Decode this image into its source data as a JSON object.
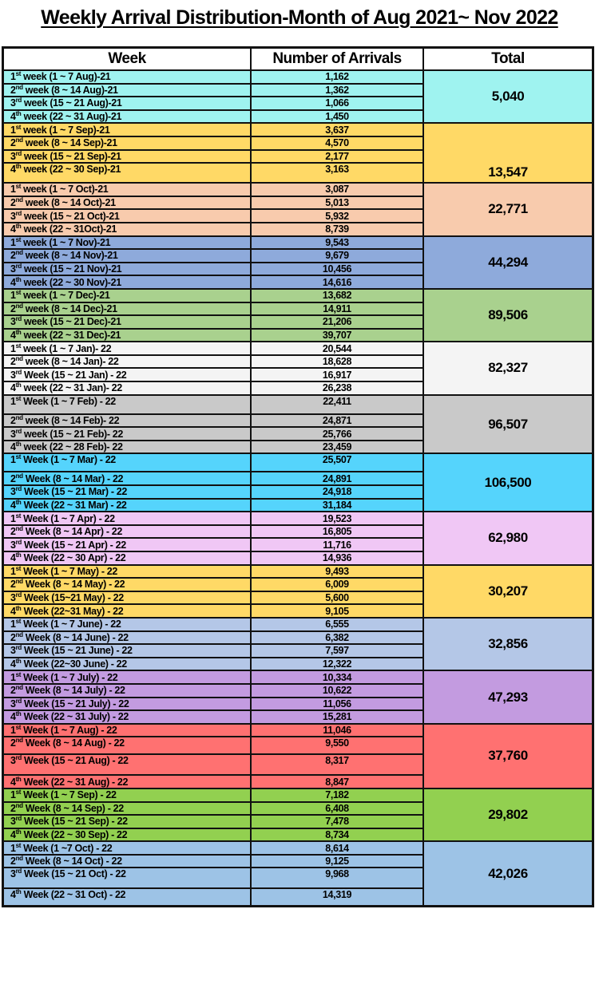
{
  "title": "Weekly Arrival Distribution-Month of Aug 2021~ Nov 2022",
  "headers": {
    "week": "Week",
    "arrivals": "Number of Arrivals",
    "total": "Total"
  },
  "months": [
    {
      "color": "#9ff3f0",
      "total": "5,040",
      "weeks": [
        {
          "n": "1",
          "sup": "st",
          "rest": " week (1 ~ 7 Aug)-21",
          "value": "1,162"
        },
        {
          "n": "2",
          "sup": "nd",
          "rest": " week (8 ~ 14 Aug)-21",
          "value": "1,362"
        },
        {
          "n": "3",
          "sup": "rd",
          "rest": " week (15 ~ 21 Aug)-21",
          "value": "1,066"
        },
        {
          "n": "4",
          "sup": "th",
          "rest": " week (22 ~ 31 Aug)-21",
          "value": "1,450"
        }
      ]
    },
    {
      "color": "#ffd966",
      "total": "13,547",
      "weeks": [
        {
          "n": "1",
          "sup": "st",
          "rest": " week (1 ~ 7 Sep)-21",
          "value": "3,637"
        },
        {
          "n": "2",
          "sup": "nd",
          "rest": " week (8 ~ 14 Sep)-21",
          "value": "4,570"
        },
        {
          "n": "3",
          "sup": "rd",
          "rest": " week (15 ~ 21 Sep)-21",
          "value": "2,177"
        },
        {
          "n": "4",
          "sup": "th",
          "rest": " week (22 ~ 30 Sep)-21",
          "value": "3,163"
        }
      ]
    },
    {
      "color": "#f8cbad",
      "total": "22,771",
      "weeks": [
        {
          "n": "1",
          "sup": "st",
          "rest": " week (1 ~ 7 Oct)-21",
          "value": "3,087"
        },
        {
          "n": "2",
          "sup": "nd",
          "rest": " week (8 ~ 14 Oct)-21",
          "value": "5,013"
        },
        {
          "n": "3",
          "sup": "rd",
          "rest": " week (15 ~ 21 Oct)-21",
          "value": "5,932"
        },
        {
          "n": "4",
          "sup": "th",
          "rest": " week (22 ~ 31Oct)-21",
          "value": "8,739"
        }
      ]
    },
    {
      "color": "#8eaadb",
      "total": "44,294",
      "weeks": [
        {
          "n": "1",
          "sup": "st",
          "rest": " week (1 ~ 7 Nov)-21",
          "value": "9,543"
        },
        {
          "n": "2",
          "sup": "nd",
          "rest": " week (8 ~ 14 Nov)-21",
          "value": "9,679"
        },
        {
          "n": "3",
          "sup": "rd",
          "rest": " week (15 ~ 21 Nov)-21",
          "value": "10,456"
        },
        {
          "n": "4",
          "sup": "th",
          "rest": " week (22 ~ 30 Nov)-21",
          "value": "14,616"
        }
      ]
    },
    {
      "color": "#a9d18e",
      "total": "89,506",
      "weeks": [
        {
          "n": "1",
          "sup": "st",
          "rest": " week (1 ~ 7 Dec)-21",
          "value": "13,682"
        },
        {
          "n": "2",
          "sup": "nd",
          "rest": " week (8 ~ 14 Dec)-21",
          "value": "14,911"
        },
        {
          "n": "3",
          "sup": "rd",
          "rest": " week (15 ~ 21 Dec)-21",
          "value": "21,206"
        },
        {
          "n": "4",
          "sup": "th",
          "rest": " week (22 ~ 31 Dec)-21",
          "value": "39,707"
        }
      ]
    },
    {
      "color": "#f4f4f4",
      "total": "82,327",
      "weeks": [
        {
          "n": "1",
          "sup": "st",
          "rest": " week (1 ~ 7 Jan)- 22",
          "value": "20,544"
        },
        {
          "n": "2",
          "sup": "nd",
          "rest": " week (8 ~ 14 Jan)- 22",
          "value": "18,628"
        },
        {
          "n": "3",
          "sup": "rd",
          "rest": " Week (15 ~ 21 Jan) - 22",
          "value": "16,917"
        },
        {
          "n": "4",
          "sup": "th",
          "rest": " week (22 ~ 31 Jan)- 22",
          "value": "26,238"
        }
      ]
    },
    {
      "color": "#c9c9c9",
      "total": "96,507",
      "weeks": [
        {
          "n": "1",
          "sup": "st",
          "rest": " Week (1 ~ 7 Feb) - 22",
          "value": "22,411"
        },
        {
          "n": "2",
          "sup": "nd",
          "rest": " week (8 ~ 14 Feb)- 22",
          "value": "24,871"
        },
        {
          "n": "3",
          "sup": "rd",
          "rest": " week (15 ~ 21 Feb)- 22",
          "value": "25,766"
        },
        {
          "n": "4",
          "sup": "th",
          "rest": " week (22 ~ 28 Feb)- 22",
          "value": "23,459"
        }
      ]
    },
    {
      "color": "#55d4fc",
      "total": "106,500",
      "weeks": [
        {
          "n": "1",
          "sup": "st",
          "rest": " Week (1 ~ 7 Mar) - 22",
          "value": "25,507"
        },
        {
          "n": "2",
          "sup": "nd",
          "rest": " Week (8 ~ 14 Mar) - 22",
          "value": "24,891"
        },
        {
          "n": "3",
          "sup": "rd",
          "rest": " Week (15 ~ 21 Mar) - 22",
          "value": "24,918"
        },
        {
          "n": "4",
          "sup": "th",
          "rest": " Week (22 ~ 31 Mar) - 22",
          "value": "31,184"
        }
      ]
    },
    {
      "color": "#f0c7f5",
      "total": "62,980",
      "weeks": [
        {
          "n": "1",
          "sup": "st",
          "rest": " Week (1 ~ 7 Apr) - 22",
          "value": "19,523"
        },
        {
          "n": "2",
          "sup": "nd",
          "rest": " Week (8 ~ 14 Apr) - 22",
          "value": "16,805"
        },
        {
          "n": "3",
          "sup": "rd",
          "rest": " Week (15 ~ 21 Apr) - 22",
          "value": "11,716"
        },
        {
          "n": "4",
          "sup": "th",
          "rest": " Week (22 ~ 30 Apr) - 22",
          "value": "14,936"
        }
      ]
    },
    {
      "color": "#ffd966",
      "total": "30,207",
      "weeks": [
        {
          "n": "1",
          "sup": "st",
          "rest": " Week (1 ~ 7 May) - 22",
          "value": "9,493"
        },
        {
          "n": "2",
          "sup": "nd",
          "rest": " Week (8 ~ 14 May) - 22",
          "value": "6,009"
        },
        {
          "n": "3",
          "sup": "rd",
          "rest": " Week (15~21 May) - 22",
          "value": "5,600"
        },
        {
          "n": "4",
          "sup": "th",
          "rest": " Week (22~31 May) - 22",
          "value": "9,105"
        }
      ]
    },
    {
      "color": "#b4c7e7",
      "total": "32,856",
      "weeks": [
        {
          "n": "1",
          "sup": "st",
          "rest": " Week (1 ~ 7 June) - 22",
          "value": "6,555"
        },
        {
          "n": "2",
          "sup": "nd",
          "rest": " Week (8 ~ 14 June) - 22",
          "value": "6,382"
        },
        {
          "n": "3",
          "sup": "rd",
          "rest": " Week (15 ~ 21 June) - 22",
          "value": "7,597"
        },
        {
          "n": "4",
          "sup": "th",
          "rest": " Week (22~30 June) - 22",
          "value": "12,322"
        }
      ]
    },
    {
      "color": "#c39be0",
      "total": "47,293",
      "weeks": [
        {
          "n": "1",
          "sup": "st",
          "rest": " Week (1 ~ 7 July) - 22",
          "value": "10,334"
        },
        {
          "n": "2",
          "sup": "nd",
          "rest": " Week (8 ~ 14 July) - 22",
          "value": "10,622"
        },
        {
          "n": "3",
          "sup": "rd",
          "rest": " Week (15 ~ 21 July) - 22",
          "value": "11,056"
        },
        {
          "n": "4",
          "sup": "th",
          "rest": " Week (22 ~ 31 July) - 22",
          "value": "15,281"
        }
      ]
    },
    {
      "color": "#ff7171",
      "total": "37,760",
      "weeks": [
        {
          "n": "1",
          "sup": "st",
          "rest": " Week (1 ~ 7 Aug) - 22",
          "value": "11,046"
        },
        {
          "n": "2",
          "sup": "nd",
          "rest": " Week (8 ~ 14 Aug) - 22",
          "value": "9,550"
        },
        {
          "n": "3",
          "sup": "rd",
          "rest": " Week (15 ~ 21 Aug) - 22",
          "value": "8,317"
        },
        {
          "n": "4",
          "sup": "th",
          "rest": " Week (22 ~ 31 Aug) - 22",
          "value": "8,847"
        }
      ]
    },
    {
      "color": "#92d050",
      "total": "29,802",
      "weeks": [
        {
          "n": "1",
          "sup": "st",
          "rest": " Week (1 ~ 7 Sep) - 22",
          "value": "7,182"
        },
        {
          "n": "2",
          "sup": "nd",
          "rest": " Week (8 ~ 14 Sep) - 22",
          "value": "6,408"
        },
        {
          "n": "3",
          "sup": "rd",
          "rest": " Week (15 ~ 21 Sep) - 22",
          "value": "7,478"
        },
        {
          "n": "4",
          "sup": "th",
          "rest": " Week (22 ~ 30 Sep) - 22",
          "value": "8,734"
        }
      ]
    },
    {
      "color": "#9dc3e6",
      "total": "42,026",
      "weeks": [
        {
          "n": "1",
          "sup": "st",
          "rest": " Week (1 ~7 Oct) - 22",
          "value": "8,614"
        },
        {
          "n": "2",
          "sup": "nd",
          "rest": " Week (8 ~ 14 Oct) - 22",
          "value": "9,125"
        },
        {
          "n": "3",
          "sup": "rd",
          "rest": " Week (15 ~ 21 Oct) - 22",
          "value": "9,968"
        },
        {
          "n": "4",
          "sup": "th",
          "rest": " Week (22 ~ 31 Oct) - 22",
          "value": "14,319"
        }
      ]
    }
  ]
}
